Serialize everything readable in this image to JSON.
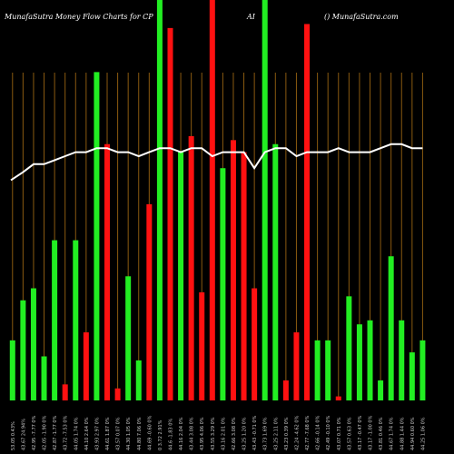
{
  "header": {
    "left": "MunafaSutra  Money Flow  Charts for CP",
    "mid": "AI",
    "right": "() MunafaSutra.com"
  },
  "chart_data": {
    "type": "bar",
    "title": "MunafaSutra Money Flow Charts for CPAI",
    "ylim": [
      0,
      100
    ],
    "colors": {
      "up": "#22ee22",
      "down": "#ff1111",
      "line": "#ffffff",
      "grid": "#8a5a10"
    },
    "bars": [
      {
        "v": 15,
        "c": "up"
      },
      {
        "v": 25,
        "c": "up"
      },
      {
        "v": 28,
        "c": "up"
      },
      {
        "v": 11,
        "c": "up"
      },
      {
        "v": 40,
        "c": "up"
      },
      {
        "v": 4,
        "c": "down"
      },
      {
        "v": 40,
        "c": "up"
      },
      {
        "v": 17,
        "c": "down"
      },
      {
        "v": 82,
        "c": "up"
      },
      {
        "v": 64,
        "c": "down"
      },
      {
        "v": 3,
        "c": "down"
      },
      {
        "v": 31,
        "c": "up"
      },
      {
        "v": 10,
        "c": "up"
      },
      {
        "v": 49,
        "c": "down"
      },
      {
        "v": 100,
        "c": "up"
      },
      {
        "v": 93,
        "c": "down"
      },
      {
        "v": 62,
        "c": "up"
      },
      {
        "v": 66,
        "c": "down"
      },
      {
        "v": 27,
        "c": "down"
      },
      {
        "v": 100,
        "c": "down"
      },
      {
        "v": 58,
        "c": "up"
      },
      {
        "v": 65,
        "c": "down"
      },
      {
        "v": 62,
        "c": "down"
      },
      {
        "v": 28,
        "c": "down"
      },
      {
        "v": 100,
        "c": "up"
      },
      {
        "v": 64,
        "c": "up"
      },
      {
        "v": 5,
        "c": "down"
      },
      {
        "v": 17,
        "c": "down"
      },
      {
        "v": 94,
        "c": "down"
      },
      {
        "v": 15,
        "c": "up"
      },
      {
        "v": 15,
        "c": "up"
      },
      {
        "v": 1,
        "c": "down"
      },
      {
        "v": 26,
        "c": "up"
      },
      {
        "v": 19,
        "c": "up"
      },
      {
        "v": 20,
        "c": "up"
      },
      {
        "v": 5,
        "c": "up"
      },
      {
        "v": 36,
        "c": "up"
      },
      {
        "v": 20,
        "c": "up"
      },
      {
        "v": 12,
        "c": "up"
      },
      {
        "v": 15,
        "c": "up"
      }
    ],
    "line": [
      55,
      57,
      59,
      59,
      60,
      61,
      62,
      62,
      63,
      63,
      62,
      62,
      61,
      62,
      63,
      63,
      62,
      63,
      63,
      61,
      62,
      62,
      62,
      58,
      62,
      63,
      63,
      61,
      62,
      62,
      62,
      63,
      62,
      62,
      62,
      63,
      64,
      64,
      63,
      63
    ],
    "x_labels": [
      "53.05 0.43%",
      "43.67 24.94%",
      "42.95 -7.77 0%",
      "42.05 -1.90 0%",
      "42.87 -1.77 0%",
      "43.72 -7.53 0%",
      "44.05 1.74 0%",
      "44.10 2.64 0%",
      "43.93 2.97 0%",
      "44.61 1.87 0%",
      "43.57 0.07 0%",
      "44.30 1.05 0%",
      "44.80 7.06 0%",
      "44.69 -0.60 0%",
      "0 3.72 2.91%",
      "44.6 -1.83 0%",
      "44.16 2.04 0%",
      "43.44 3.08 0%",
      "43.95 4.06 0%",
      "43.55 3.29 0%",
      "43.16 2.01 0%",
      "42.66 3.08 0%",
      "43.25 1.20 0%",
      "43.43 -0.71 0%",
      "43.73 1.69 0%",
      "43.25 2.11 0%",
      "43.23 0.39 0%",
      "42.24 -4.62 0%",
      "42.77 -7.68 0%",
      "42.66 -0.14 0%",
      "42.49 -0.10 0%",
      "43.07 0.71 0%",
      "43.57 0.63 0%",
      "43.17 -0.47 0%",
      "43.17 -1.00 0%",
      "43.81 0.46 0%",
      "44.67 1.74 0%",
      "44.88 1.44 0%",
      "44.94 0.60 0%",
      "44.25 1.06 0%"
    ]
  }
}
